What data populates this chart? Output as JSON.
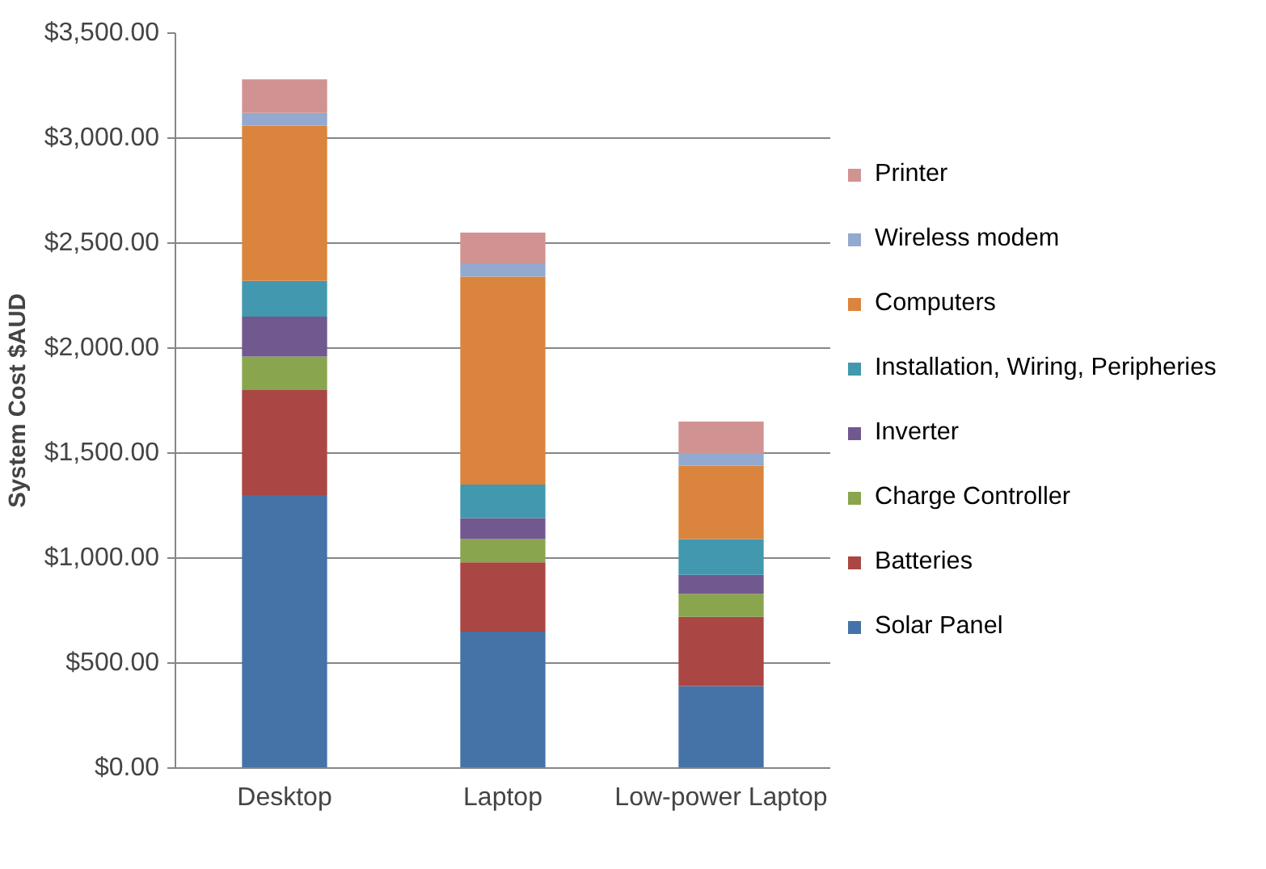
{
  "chart_data": {
    "type": "bar",
    "stacked": true,
    "ylabel": "System Cost $AUD",
    "categories": [
      "Desktop",
      "Laptop",
      "Low-power Laptop"
    ],
    "series": [
      {
        "name": "Solar Panel",
        "color": "#4572a7",
        "values": [
          1300,
          650,
          390
        ]
      },
      {
        "name": "Batteries",
        "color": "#aa4643",
        "values": [
          500,
          330,
          330
        ]
      },
      {
        "name": "Charge Controller",
        "color": "#89a54e",
        "values": [
          160,
          110,
          110
        ]
      },
      {
        "name": "Inverter",
        "color": "#71588f",
        "values": [
          190,
          100,
          90
        ]
      },
      {
        "name": "Installation, Wiring, Peripheries",
        "color": "#4198af",
        "values": [
          170,
          160,
          170
        ]
      },
      {
        "name": "Computers",
        "color": "#db843d",
        "values": [
          740,
          990,
          350
        ]
      },
      {
        "name": "Wireless modem",
        "color": "#93a9cf",
        "values": [
          60,
          60,
          60
        ]
      },
      {
        "name": "Printer",
        "color": "#d19392",
        "values": [
          160,
          150,
          150
        ]
      }
    ],
    "ylim": [
      0,
      3500
    ],
    "yticks": [
      {
        "value": 0,
        "label": "$0.00"
      },
      {
        "value": 500,
        "label": "$500.00"
      },
      {
        "value": 1000,
        "label": "$1,000.00"
      },
      {
        "value": 1500,
        "label": "$1,500.00"
      },
      {
        "value": 2000,
        "label": "$2,000.00"
      },
      {
        "value": 2500,
        "label": "$2,500.00"
      },
      {
        "value": 3000,
        "label": "$3,000.00"
      },
      {
        "value": 3500,
        "label": "$3,500.00"
      }
    ],
    "grid": "y",
    "legend": "right"
  }
}
